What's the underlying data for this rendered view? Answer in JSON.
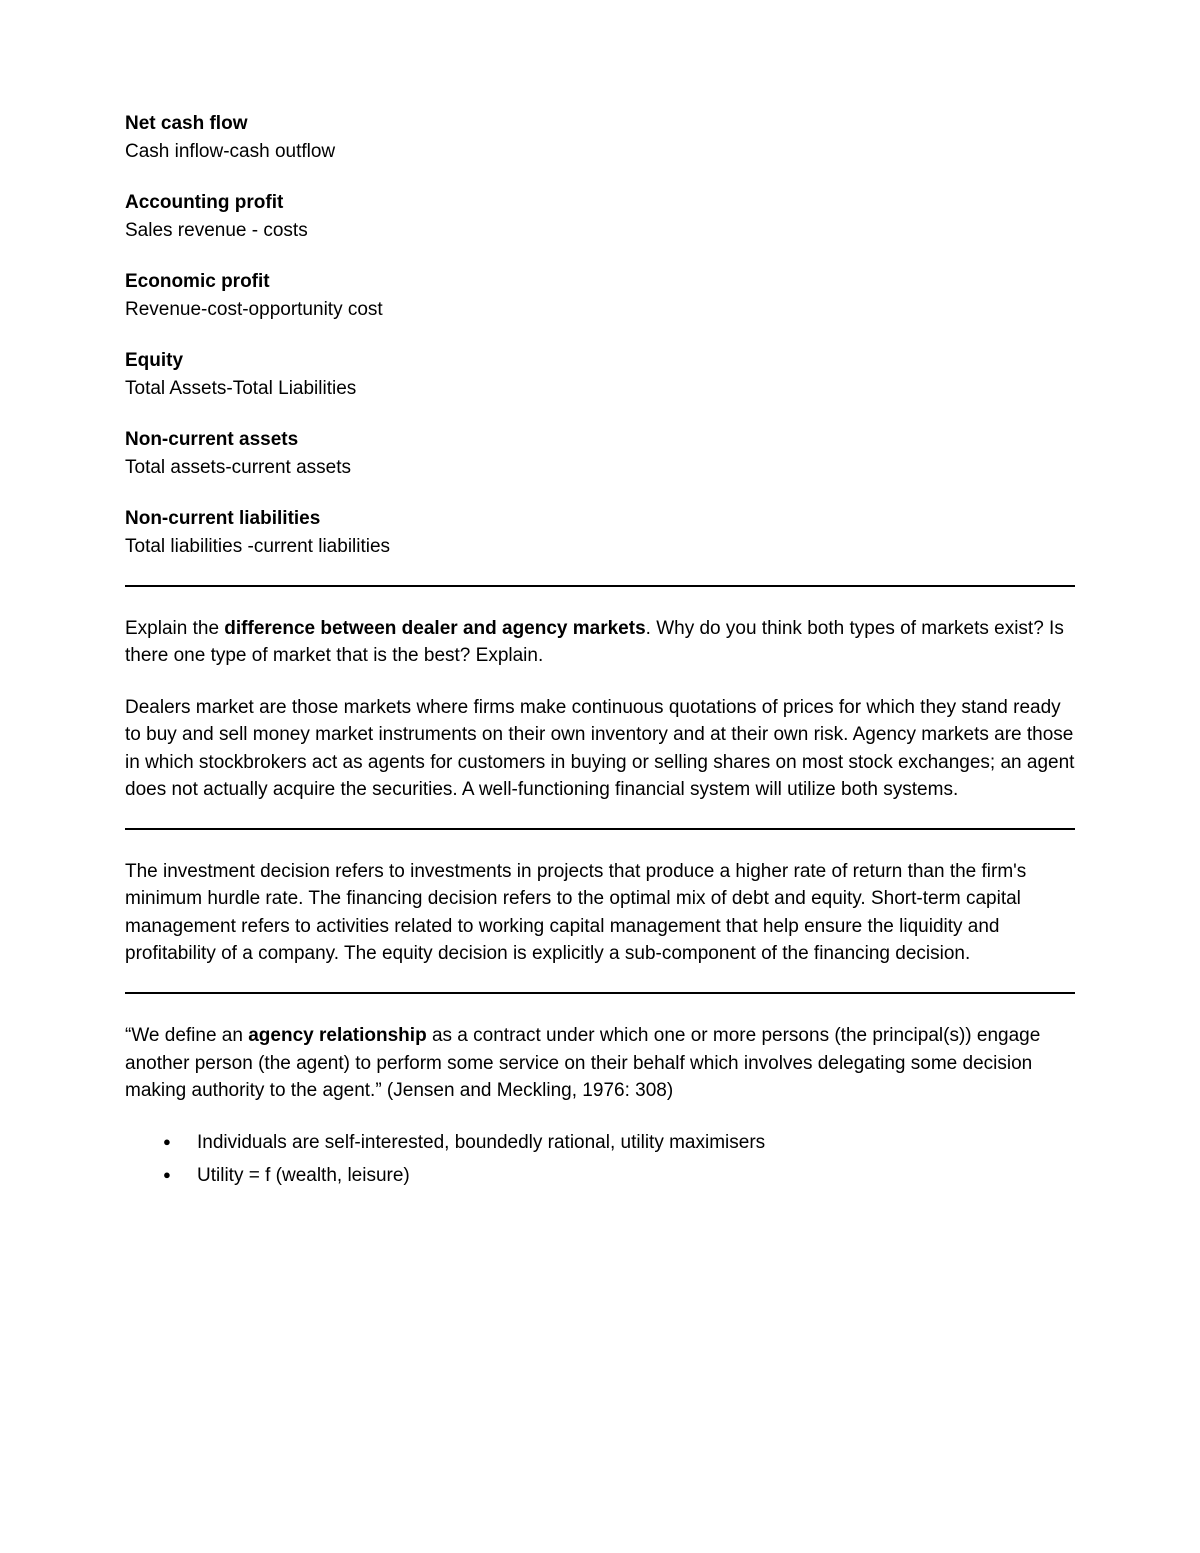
{
  "definitions": [
    {
      "term": "Net cash flow",
      "desc": "Cash inflow-cash outflow"
    },
    {
      "term": "Accounting profit",
      "desc": "Sales revenue - costs"
    },
    {
      "term": "Economic profit",
      "desc": "Revenue-cost-opportunity cost"
    },
    {
      "term": "Equity",
      "desc": "Total Assets-Total Liabilities"
    },
    {
      "term": "Non-current assets",
      "desc": "Total assets-current assets"
    },
    {
      "term": "Non-current liabilities",
      "desc": "Total liabilities -current liabilities"
    }
  ],
  "section1": {
    "q_before": "Explain the ",
    "q_bold": "difference between dealer and agency markets",
    "q_after": ". Why do you think both types of markets exist? Is there one type of market that is the best? Explain.",
    "answer": "Dealers market are those markets where firms make continuous quotations of prices for which they stand ready to buy and sell money market instruments on their own inventory and at their own risk. Agency markets are those in which stockbrokers act as agents for customers in buying or selling shares on most stock exchanges; an agent does not actually acquire the securities. A well-functioning financial system will utilize both systems."
  },
  "section2": {
    "text": "The investment decision refers to investments in projects that produce a higher rate of return than the firm's minimum hurdle rate. The financing decision refers to the optimal mix of debt and equity. Short-term capital management refers to activities related to working capital management that help ensure the liquidity and profitability of a company. The equity decision is explicitly a sub-component of the financing decision."
  },
  "section3": {
    "quote_before": "“We define an ",
    "quote_bold": "agency relationship",
    "quote_after": " as a contract under which one or more persons (the principal(s)) engage another person (the agent) to perform some service on their behalf which involves delegating some decision making authority to the agent.” (Jensen and Meckling, 1976: 308)",
    "bullets": [
      "Individuals are self-interested, boundedly rational, utility maximisers",
      "Utility = f (wealth, leisure)"
    ]
  }
}
